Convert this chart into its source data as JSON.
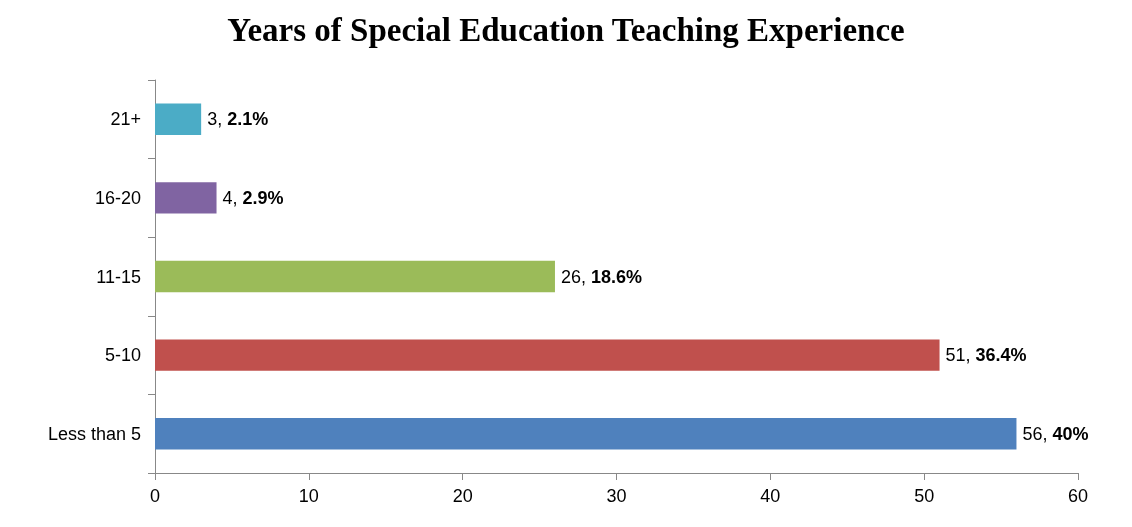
{
  "chart_data": {
    "type": "bar",
    "orientation": "horizontal",
    "title": "Years of Special Education Teaching Experience",
    "categories": [
      "21+",
      "16-20",
      "11-15",
      "5-10",
      "Less than 5"
    ],
    "values": [
      3,
      4,
      26,
      51,
      56
    ],
    "colors": [
      "#4bacc6",
      "#8064a2",
      "#9bbb59",
      "#c0504d",
      "#4f81bd"
    ],
    "value_labels": [
      "3, 2.1%",
      "4, 2.9%",
      "26, 18.6%",
      "51, 36.4%",
      "56, 40%"
    ],
    "xlim": [
      0,
      60
    ],
    "xticks": [
      0,
      10,
      20,
      30,
      40,
      50,
      60
    ],
    "grid": false
  }
}
